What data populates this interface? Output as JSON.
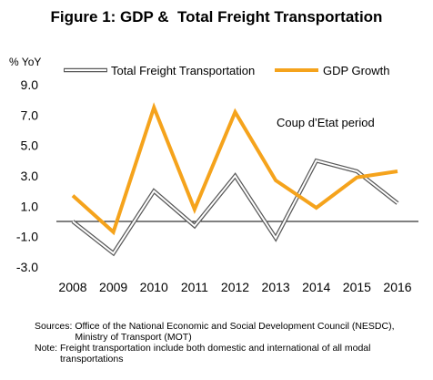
{
  "title": "Figure 1: GDP &  Total Freight Transportation",
  "chart_data": {
    "type": "line",
    "title": "Figure 1: GDP &  Total Freight Transportation",
    "ylabel": "% YoY",
    "xlabel": "",
    "categories": [
      "2008",
      "2009",
      "2010",
      "2011",
      "2012",
      "2013",
      "2014",
      "2015",
      "2016"
    ],
    "yticks": [
      "9.0",
      "7.0",
      "5.0",
      "3.0",
      "1.0",
      "-1.0",
      "-3.0"
    ],
    "ylim": [
      -3.0,
      9.0
    ],
    "series": [
      {
        "name": "Total Freight Transportation",
        "style": "outline",
        "color": "#595959",
        "values": [
          0.0,
          -2.1,
          2.0,
          -0.3,
          3.0,
          -1.1,
          4.0,
          3.3,
          1.2
        ]
      },
      {
        "name": "GDP Growth",
        "style": "solid",
        "color": "#f5a31c",
        "values": [
          1.7,
          -0.7,
          7.5,
          0.8,
          7.2,
          2.7,
          0.9,
          2.9,
          3.3
        ]
      }
    ],
    "annotations": [
      "Coup d’Etat period"
    ],
    "legend": "top",
    "grid": false
  },
  "notes": {
    "sources_label": "Sources: ",
    "sources_text": "Office of the National Economic and Social Development Council (NESDC), Ministry of Transport (MOT)",
    "note_label": "Note: ",
    "note_text": "Freight transportation include both domestic and international of all modal transportations"
  }
}
